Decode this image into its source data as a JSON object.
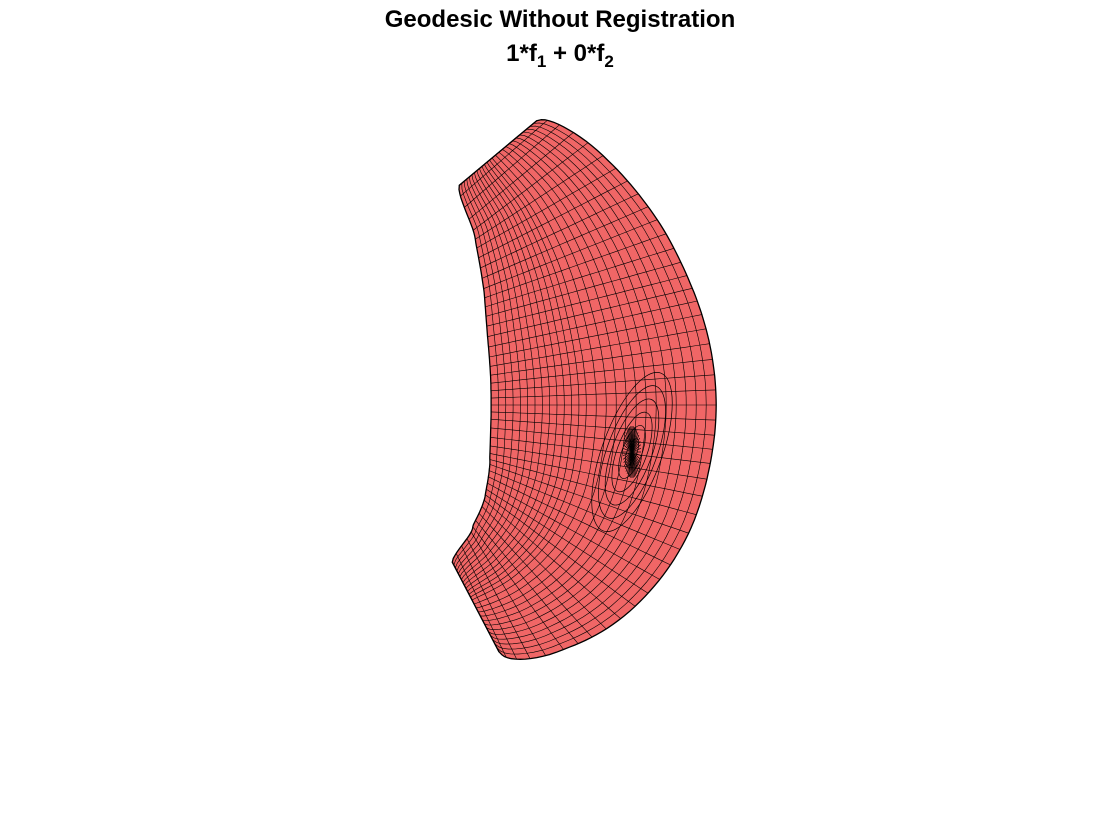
{
  "title": {
    "line1": "Geodesic Without Registration",
    "coef1": "1*f",
    "sub1": "1",
    "op": " + 0*f",
    "sub2": "2"
  },
  "surface": {
    "face_color": "#F06666",
    "edge_color": "#000000"
  }
}
